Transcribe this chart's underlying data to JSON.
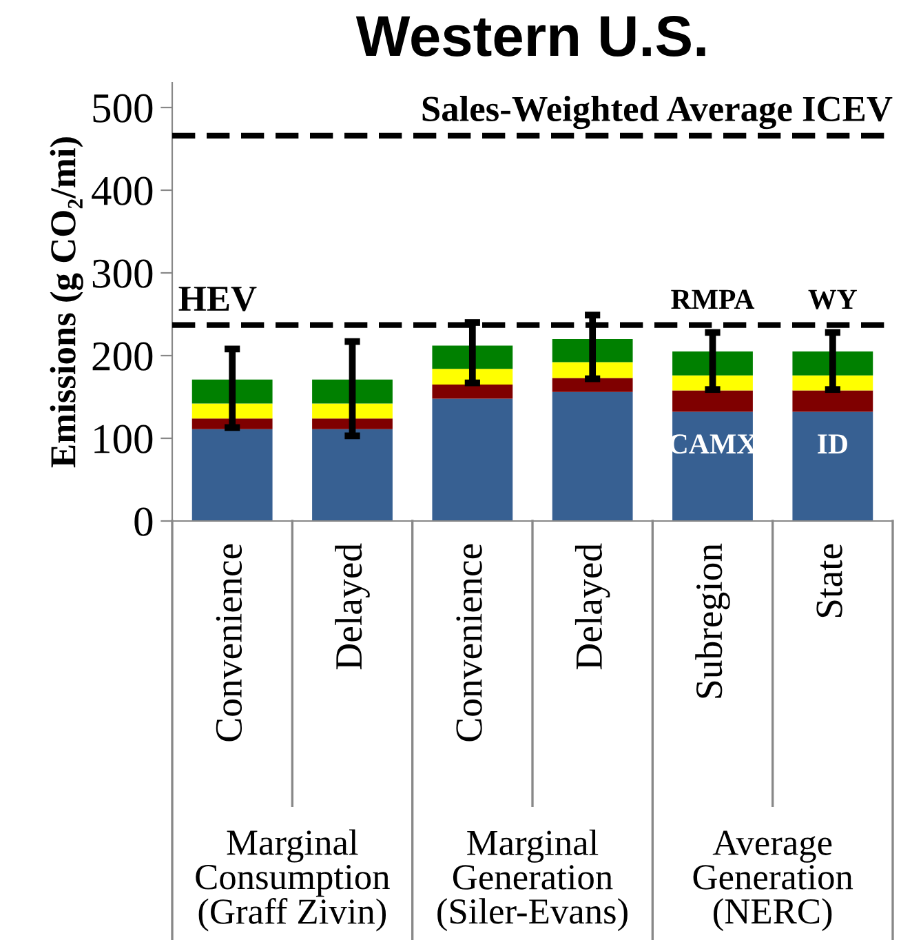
{
  "chart_data": {
    "type": "bar",
    "stacked": true,
    "title": "Western U.S.",
    "ylabel": "Emissions (g CO₂/mi)",
    "categories": [
      "Convenience",
      "Delayed",
      "Convenience",
      "Delayed",
      "Subregion",
      "State"
    ],
    "series": [
      {
        "color": "#376092",
        "values": [
          111,
          111,
          148,
          156,
          132,
          132
        ]
      },
      {
        "color": "#7f0000",
        "values": [
          13,
          13,
          17,
          17,
          26,
          26
        ]
      },
      {
        "color": "#ffff00",
        "values": [
          18,
          18,
          19,
          19,
          18,
          18
        ]
      },
      {
        "color": "#008000",
        "values": [
          29,
          29,
          28,
          28,
          29,
          29
        ],
        "errors": [
          [
            113,
            208
          ],
          [
            103,
            217
          ],
          [
            167,
            240
          ],
          [
            172,
            249
          ],
          [
            159,
            228
          ],
          [
            159,
            228
          ]
        ]
      }
    ],
    "ylim": [
      0,
      530
    ],
    "yticks": [
      0,
      100,
      200,
      300,
      400,
      500
    ],
    "ref_lines": [
      {
        "axis": "y",
        "value": 466,
        "label": "Sales-Weighted Average ICEV",
        "color": "#000000",
        "line_style": "dashed"
      },
      {
        "axis": "y",
        "value": 237,
        "label": "HEV",
        "color": "#000000",
        "line_style": "dashed"
      }
    ],
    "annotations": [
      "RMPA",
      "WY",
      "CAMX",
      "ID",
      "Marginal\nConsumption\n(Graff Zivin)",
      "Marginal\nGeneration\n(Siler-Evans)",
      "Average\nGeneration\n(NERC)"
    ],
    "grid": false
  }
}
